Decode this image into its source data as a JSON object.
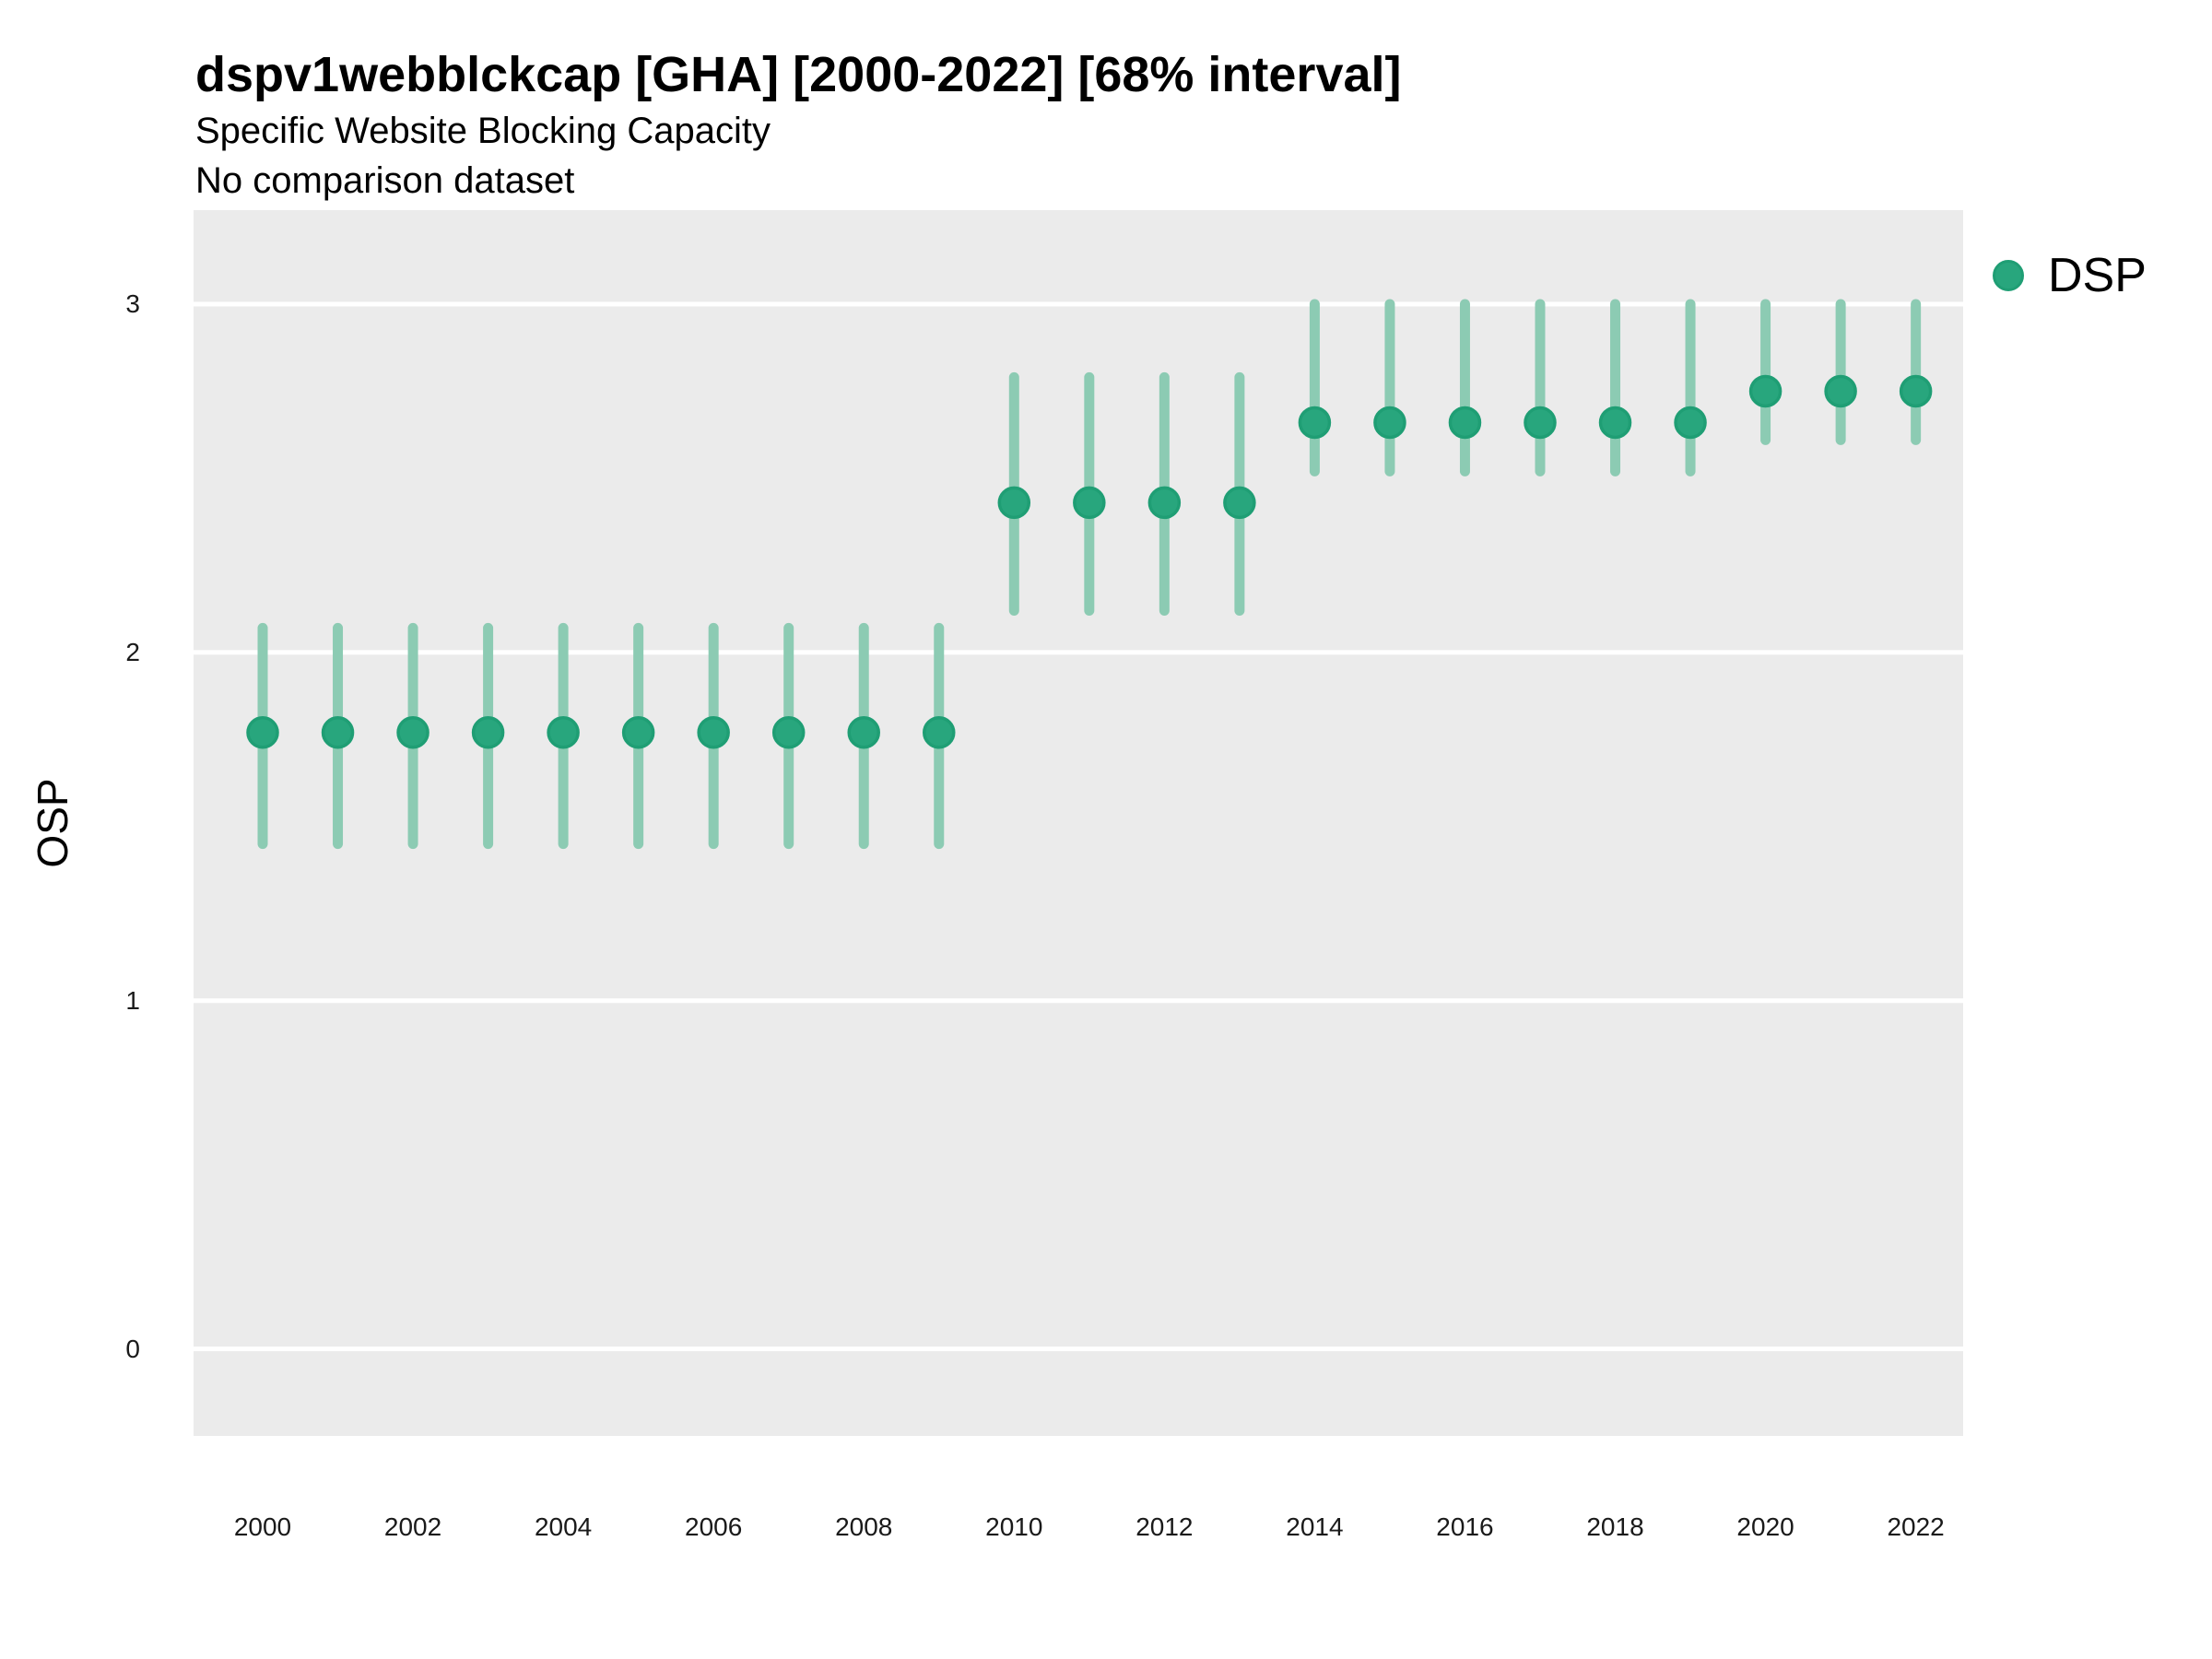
{
  "header": {
    "title": "dspv1webblckcap [GHA] [2000-2022] [68% interval]",
    "subtitle1": "Specific Website Blocking Capacity",
    "subtitle2": "No comparison dataset"
  },
  "legend": {
    "label": "DSP",
    "marker_color": "#28a67d",
    "marker_stroke": "#1f9e74",
    "position": "top-right"
  },
  "chart_data": {
    "type": "scatter",
    "subtype": "point-interval",
    "title": "dspv1webblckcap [GHA] [2000-2022] [68% interval]",
    "subtitle": [
      "Specific Website Blocking Capacity",
      "No comparison dataset"
    ],
    "interval_level": "68%",
    "xlabel": "",
    "ylabel": "OSP",
    "xlim": [
      1999.08,
      2022.63
    ],
    "ylim": [
      -0.25,
      3.27
    ],
    "x_ticks": [
      2000,
      2002,
      2004,
      2006,
      2008,
      2010,
      2012,
      2014,
      2016,
      2018,
      2020,
      2022
    ],
    "y_ticks": [
      0,
      1,
      2,
      3
    ],
    "grid": "horizontal-major-only",
    "panel_bg": "#ebebeb",
    "grid_color": "#ffffff",
    "series": [
      {
        "name": "DSP",
        "marker_color": "#28a67d",
        "marker_stroke": "#1f9e74",
        "interval_color": "#8ccbb3",
        "x": [
          2000,
          2001,
          2002,
          2003,
          2004,
          2005,
          2006,
          2007,
          2008,
          2009,
          2010,
          2011,
          2012,
          2013,
          2014,
          2015,
          2016,
          2017,
          2018,
          2019,
          2020,
          2021,
          2022
        ],
        "y": [
          1.77,
          1.77,
          1.77,
          1.77,
          1.77,
          1.77,
          1.77,
          1.77,
          1.77,
          1.77,
          2.43,
          2.43,
          2.43,
          2.43,
          2.66,
          2.66,
          2.66,
          2.66,
          2.66,
          2.66,
          2.75,
          2.75,
          2.75
        ],
        "y_lo": [
          1.45,
          1.45,
          1.45,
          1.45,
          1.45,
          1.45,
          1.45,
          1.45,
          1.45,
          1.45,
          2.12,
          2.12,
          2.12,
          2.12,
          2.52,
          2.52,
          2.52,
          2.52,
          2.52,
          2.52,
          2.61,
          2.61,
          2.61
        ],
        "y_hi": [
          2.07,
          2.07,
          2.07,
          2.07,
          2.07,
          2.07,
          2.07,
          2.07,
          2.07,
          2.07,
          2.79,
          2.79,
          2.79,
          2.79,
          3.0,
          3.0,
          3.0,
          3.0,
          3.0,
          3.0,
          3.0,
          3.0,
          3.0
        ]
      }
    ]
  }
}
